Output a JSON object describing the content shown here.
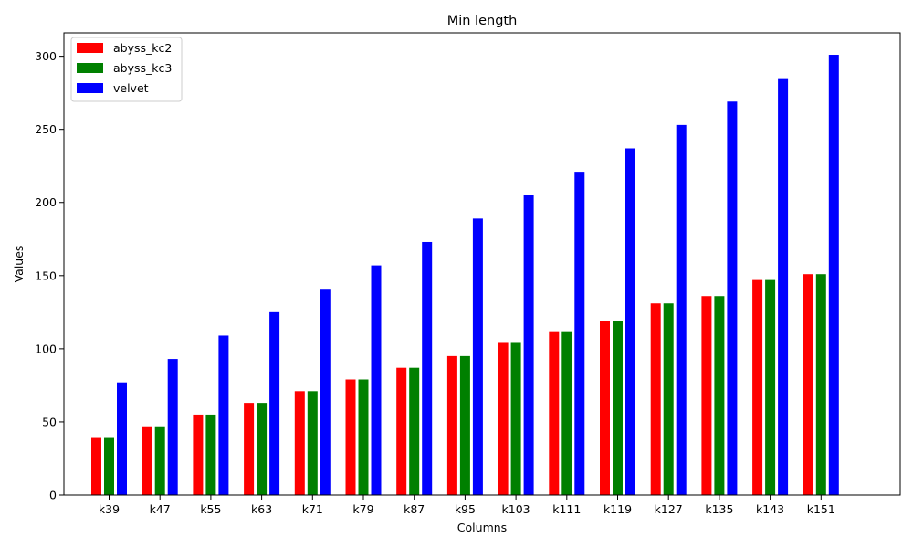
{
  "chart_data": {
    "type": "bar",
    "title": "Min length",
    "xlabel": "Columns",
    "ylabel": "Values",
    "ylim": [
      0,
      316
    ],
    "yticks": [
      0,
      50,
      100,
      150,
      200,
      250,
      300
    ],
    "categories": [
      "k39",
      "k47",
      "k55",
      "k63",
      "k71",
      "k79",
      "k87",
      "k95",
      "k103",
      "k111",
      "k119",
      "k127",
      "k135",
      "k143",
      "k151"
    ],
    "series": [
      {
        "name": "abyss_kc2",
        "color": "#ff0000",
        "values": [
          39,
          47,
          55,
          63,
          71,
          79,
          87,
          95,
          104,
          112,
          119,
          131,
          136,
          147,
          151
        ]
      },
      {
        "name": "abyss_kc3",
        "color": "#008000",
        "values": [
          39,
          47,
          55,
          63,
          71,
          79,
          87,
          95,
          104,
          112,
          119,
          131,
          136,
          147,
          151
        ]
      },
      {
        "name": "velvet",
        "color": "#0000ff",
        "values": [
          77,
          93,
          109,
          125,
          141,
          157,
          173,
          189,
          205,
          221,
          237,
          253,
          269,
          285,
          301
        ]
      }
    ],
    "legend_position": "top-left",
    "grid": false
  }
}
